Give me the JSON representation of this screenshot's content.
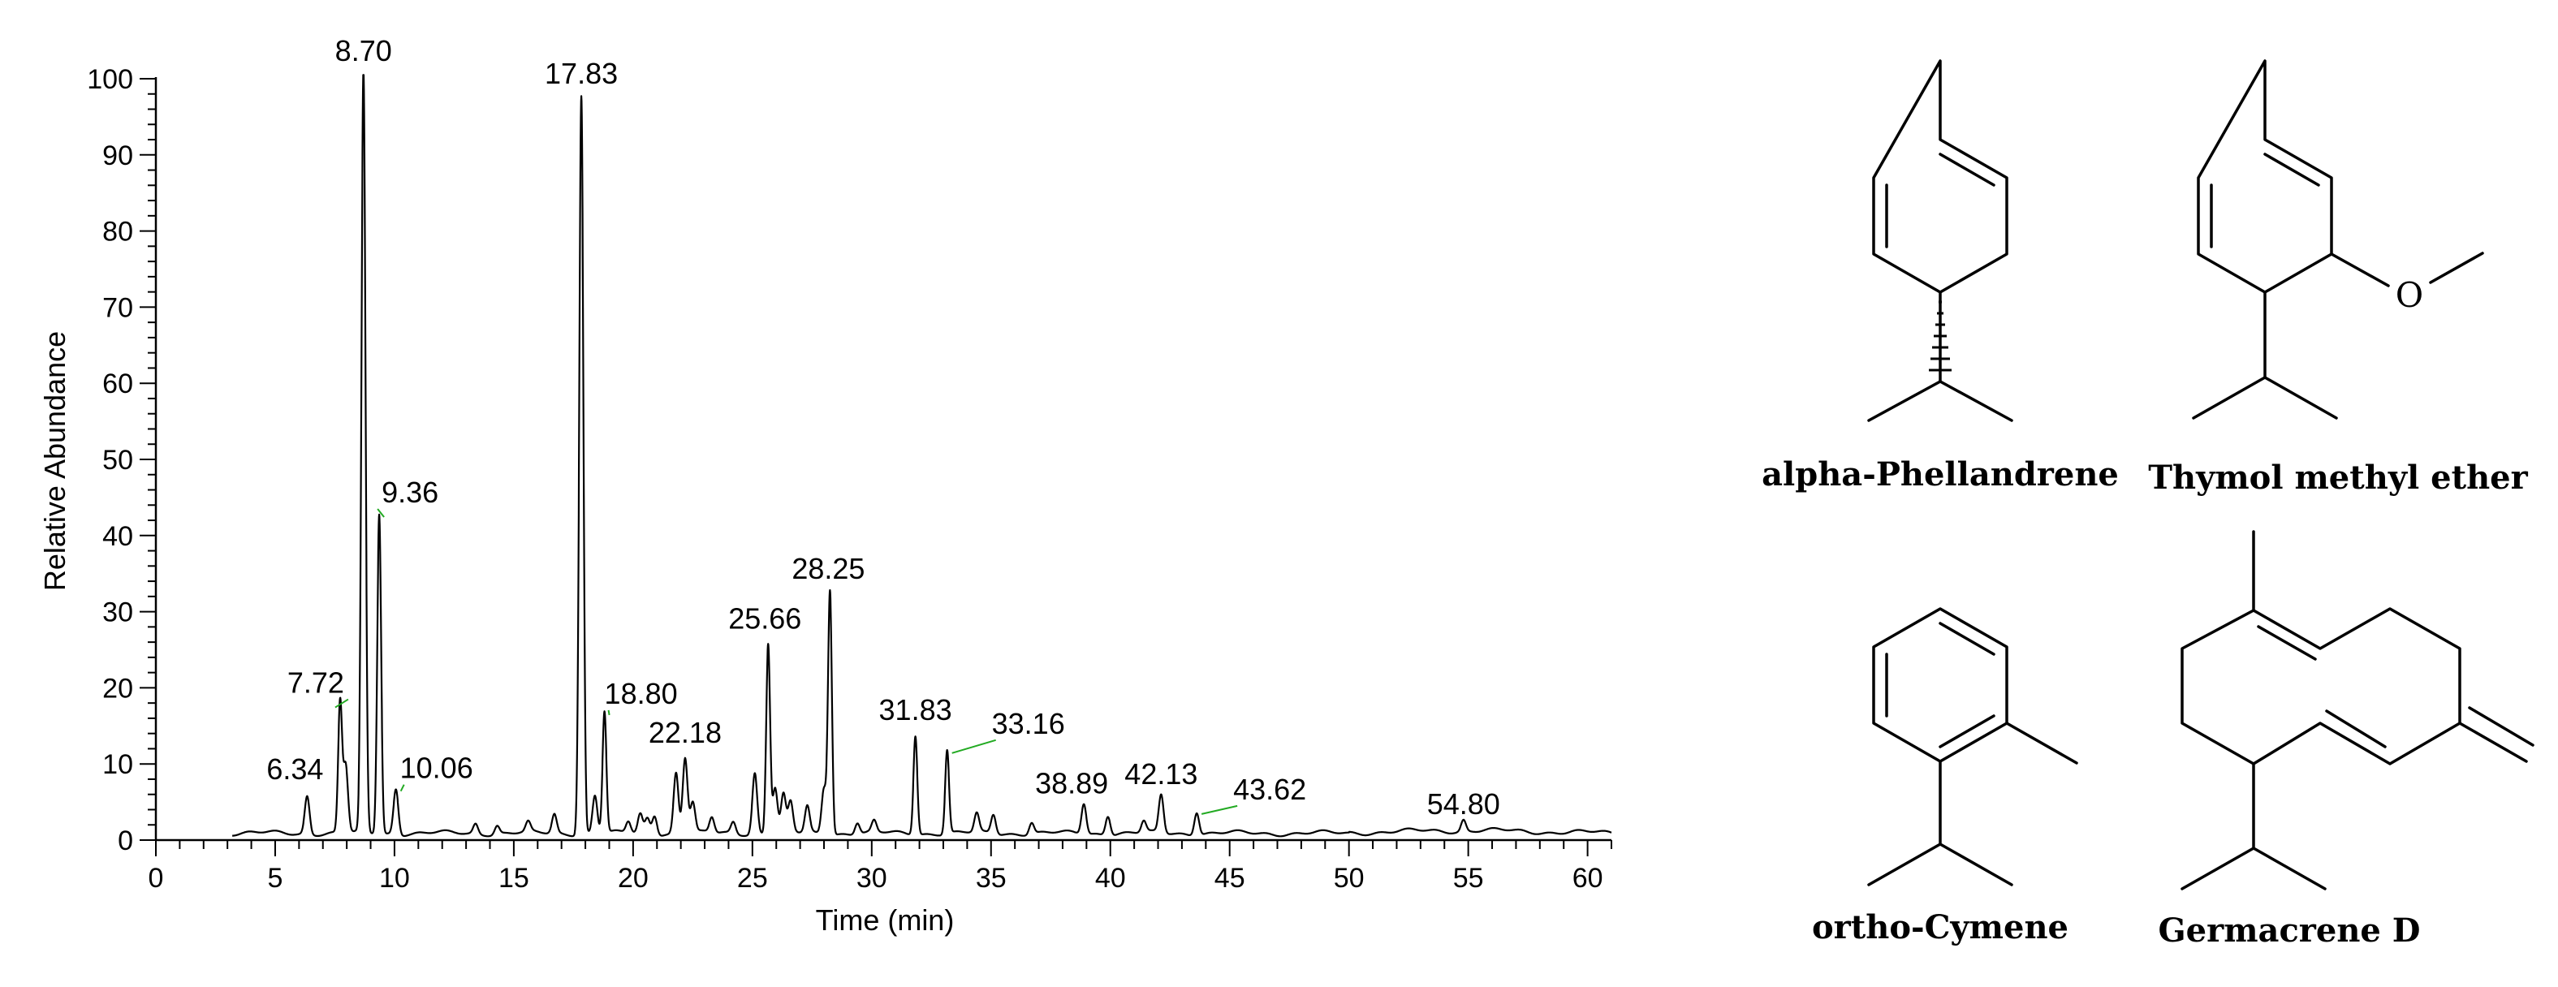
{
  "chart_data": {
    "type": "line",
    "xlabel": "Time (min)",
    "ylabel": "Relative Abundance",
    "xlim": [
      0,
      61
    ],
    "ylim": [
      0,
      100
    ],
    "x_ticks": [
      0,
      5,
      10,
      15,
      20,
      25,
      30,
      35,
      40,
      45,
      50,
      55,
      60
    ],
    "y_ticks": [
      0,
      10,
      20,
      30,
      40,
      50,
      60,
      70,
      80,
      90,
      100
    ],
    "grid": false,
    "peaks": [
      {
        "label": "6.34",
        "rt": 6.34,
        "abundance": 5
      },
      {
        "label": "7.72",
        "rt": 7.72,
        "abundance": 17
      },
      {
        "label": "8.70",
        "rt": 8.7,
        "abundance": 100
      },
      {
        "label": "9.36",
        "rt": 9.36,
        "abundance": 42
      },
      {
        "label": "10.06",
        "rt": 10.06,
        "abundance": 6
      },
      {
        "label": "17.83",
        "rt": 17.83,
        "abundance": 97
      },
      {
        "label": "18.80",
        "rt": 18.8,
        "abundance": 16
      },
      {
        "label": "22.18",
        "rt": 22.18,
        "abundance": 10
      },
      {
        "label": "25.66",
        "rt": 25.66,
        "abundance": 25
      },
      {
        "label": "28.25",
        "rt": 28.25,
        "abundance": 32
      },
      {
        "label": "31.83",
        "rt": 31.83,
        "abundance": 13
      },
      {
        "label": "33.16",
        "rt": 33.16,
        "abundance": 11
      },
      {
        "label": "38.89",
        "rt": 38.89,
        "abundance": 4
      },
      {
        "label": "42.13",
        "rt": 42.13,
        "abundance": 5
      },
      {
        "label": "43.62",
        "rt": 43.62,
        "abundance": 3
      },
      {
        "label": "54.80",
        "rt": 54.8,
        "abundance": 1.5
      }
    ],
    "minor_peaks": [
      {
        "rt": 7.95,
        "abundance": 9
      },
      {
        "rt": 13.4,
        "abundance": 1.3
      },
      {
        "rt": 14.3,
        "abundance": 1.1
      },
      {
        "rt": 15.6,
        "abundance": 1.3
      },
      {
        "rt": 16.7,
        "abundance": 2.5
      },
      {
        "rt": 18.4,
        "abundance": 5
      },
      {
        "rt": 19.8,
        "abundance": 1.5
      },
      {
        "rt": 20.3,
        "abundance": 2.5
      },
      {
        "rt": 20.6,
        "abundance": 2
      },
      {
        "rt": 20.9,
        "abundance": 2.5
      },
      {
        "rt": 21.8,
        "abundance": 8
      },
      {
        "rt": 22.5,
        "abundance": 4
      },
      {
        "rt": 23.3,
        "abundance": 2
      },
      {
        "rt": 24.2,
        "abundance": 1.5
      },
      {
        "rt": 25.1,
        "abundance": 8
      },
      {
        "rt": 25.95,
        "abundance": 6
      },
      {
        "rt": 26.3,
        "abundance": 5
      },
      {
        "rt": 26.6,
        "abundance": 4
      },
      {
        "rt": 27.3,
        "abundance": 3.5
      },
      {
        "rt": 28.0,
        "abundance": 6
      },
      {
        "rt": 29.4,
        "abundance": 1.5
      },
      {
        "rt": 30.1,
        "abundance": 1.5
      },
      {
        "rt": 34.4,
        "abundance": 2.5
      },
      {
        "rt": 35.1,
        "abundance": 2.5
      },
      {
        "rt": 36.7,
        "abundance": 1.5
      },
      {
        "rt": 39.9,
        "abundance": 2.5
      },
      {
        "rt": 41.4,
        "abundance": 1.5
      }
    ],
    "annotations": [
      "alpha-Phellandrene",
      "Thymol methyl ether",
      "ortho-Cymene",
      "Germacrene D"
    ]
  },
  "structure_atoms": {
    "oxygen": "O"
  },
  "colors": {
    "trace": "#000000",
    "label_leader": "#22aa22",
    "axis": "#000000"
  }
}
